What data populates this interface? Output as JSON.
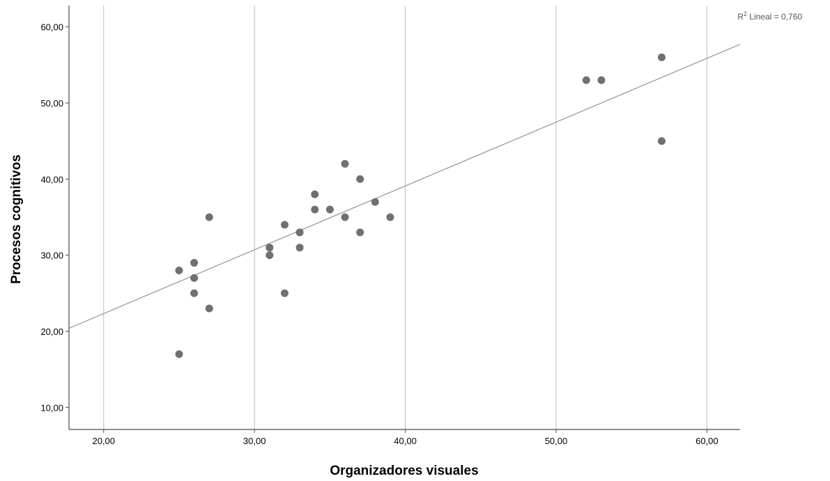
{
  "chart_data": {
    "type": "scatter",
    "title": "",
    "xlabel": "Organizadores visuales",
    "ylabel": "Procesos cognitivos",
    "xlim": [
      17.7,
      62.2
    ],
    "ylim": [
      7.1,
      62.8
    ],
    "x_ticks": [
      20,
      30,
      40,
      50,
      60
    ],
    "y_ticks": [
      10,
      20,
      30,
      40,
      50,
      60
    ],
    "x_tick_labels": [
      "20,00",
      "30,00",
      "40,00",
      "50,00",
      "60,00"
    ],
    "y_tick_labels": [
      "10,00",
      "20,00",
      "30,00",
      "40,00",
      "50,00",
      "60,00"
    ],
    "grid": "vertical",
    "colors": {
      "points": "#707070",
      "fit_line": "#9a9a9a",
      "grid": "#bdbdbd",
      "axis": "#4a4a4a"
    },
    "points": [
      {
        "x": 25,
        "y": 17
      },
      {
        "x": 25,
        "y": 28
      },
      {
        "x": 26,
        "y": 25
      },
      {
        "x": 26,
        "y": 27
      },
      {
        "x": 26,
        "y": 29
      },
      {
        "x": 27,
        "y": 23
      },
      {
        "x": 27,
        "y": 35
      },
      {
        "x": 31,
        "y": 30
      },
      {
        "x": 31,
        "y": 31
      },
      {
        "x": 32,
        "y": 25
      },
      {
        "x": 32,
        "y": 34
      },
      {
        "x": 33,
        "y": 31
      },
      {
        "x": 33,
        "y": 33
      },
      {
        "x": 34,
        "y": 36
      },
      {
        "x": 34,
        "y": 38
      },
      {
        "x": 35,
        "y": 36
      },
      {
        "x": 36,
        "y": 35
      },
      {
        "x": 36,
        "y": 42
      },
      {
        "x": 37,
        "y": 33
      },
      {
        "x": 37,
        "y": 40
      },
      {
        "x": 38,
        "y": 37
      },
      {
        "x": 39,
        "y": 35
      },
      {
        "x": 52,
        "y": 53
      },
      {
        "x": 53,
        "y": 53
      },
      {
        "x": 57,
        "y": 45
      },
      {
        "x": 57,
        "y": 56
      }
    ],
    "fit_line": {
      "slope": 0.8385,
      "intercept": 5.56
    },
    "annotation": {
      "base": "R",
      "sup": "2",
      "rest": " Lineal = 0,760"
    }
  }
}
